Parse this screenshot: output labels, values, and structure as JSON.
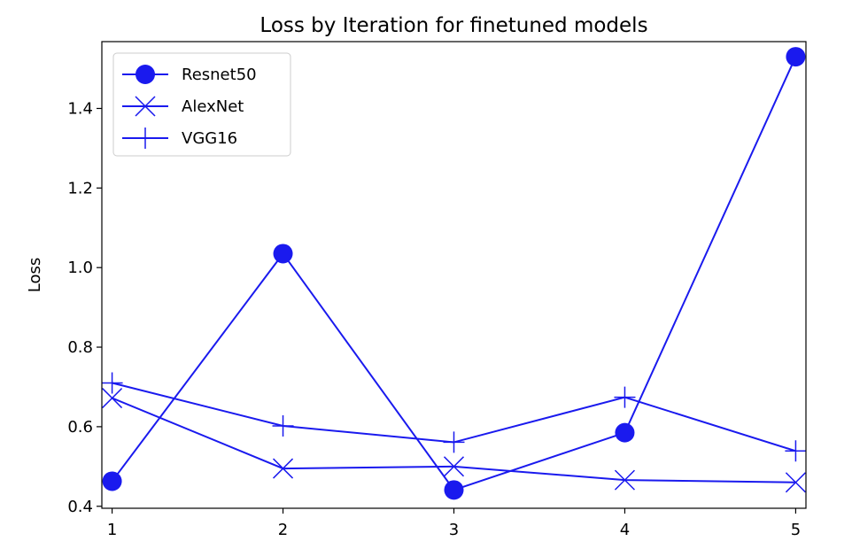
{
  "chart_data": {
    "type": "line",
    "title": "Loss by Iteration for finetuned models",
    "xlabel": "",
    "ylabel": "Loss",
    "x": [
      1,
      2,
      3,
      4,
      5
    ],
    "xlim": [
      0.94,
      5.06
    ],
    "ylim": [
      0.395,
      1.568
    ],
    "xticks": [
      1,
      2,
      3,
      4,
      5
    ],
    "yticks": [
      0.4,
      0.6,
      0.8,
      1.0,
      1.2,
      1.4
    ],
    "ytick_labels": [
      "0.4",
      "0.6",
      "0.8",
      "1.0",
      "1.2",
      "1.4"
    ],
    "grid": false,
    "legend_position": "top-left",
    "color": "#1a1aee",
    "series": [
      {
        "name": "Resnet50",
        "marker": "circle",
        "values": [
          0.463,
          1.035,
          0.441,
          0.585,
          1.53
        ]
      },
      {
        "name": "AlexNet",
        "marker": "x",
        "values": [
          0.672,
          0.495,
          0.5,
          0.466,
          0.46
        ]
      },
      {
        "name": "VGG16",
        "marker": "plus",
        "values": [
          0.71,
          0.602,
          0.561,
          0.674,
          0.539
        ]
      }
    ]
  }
}
